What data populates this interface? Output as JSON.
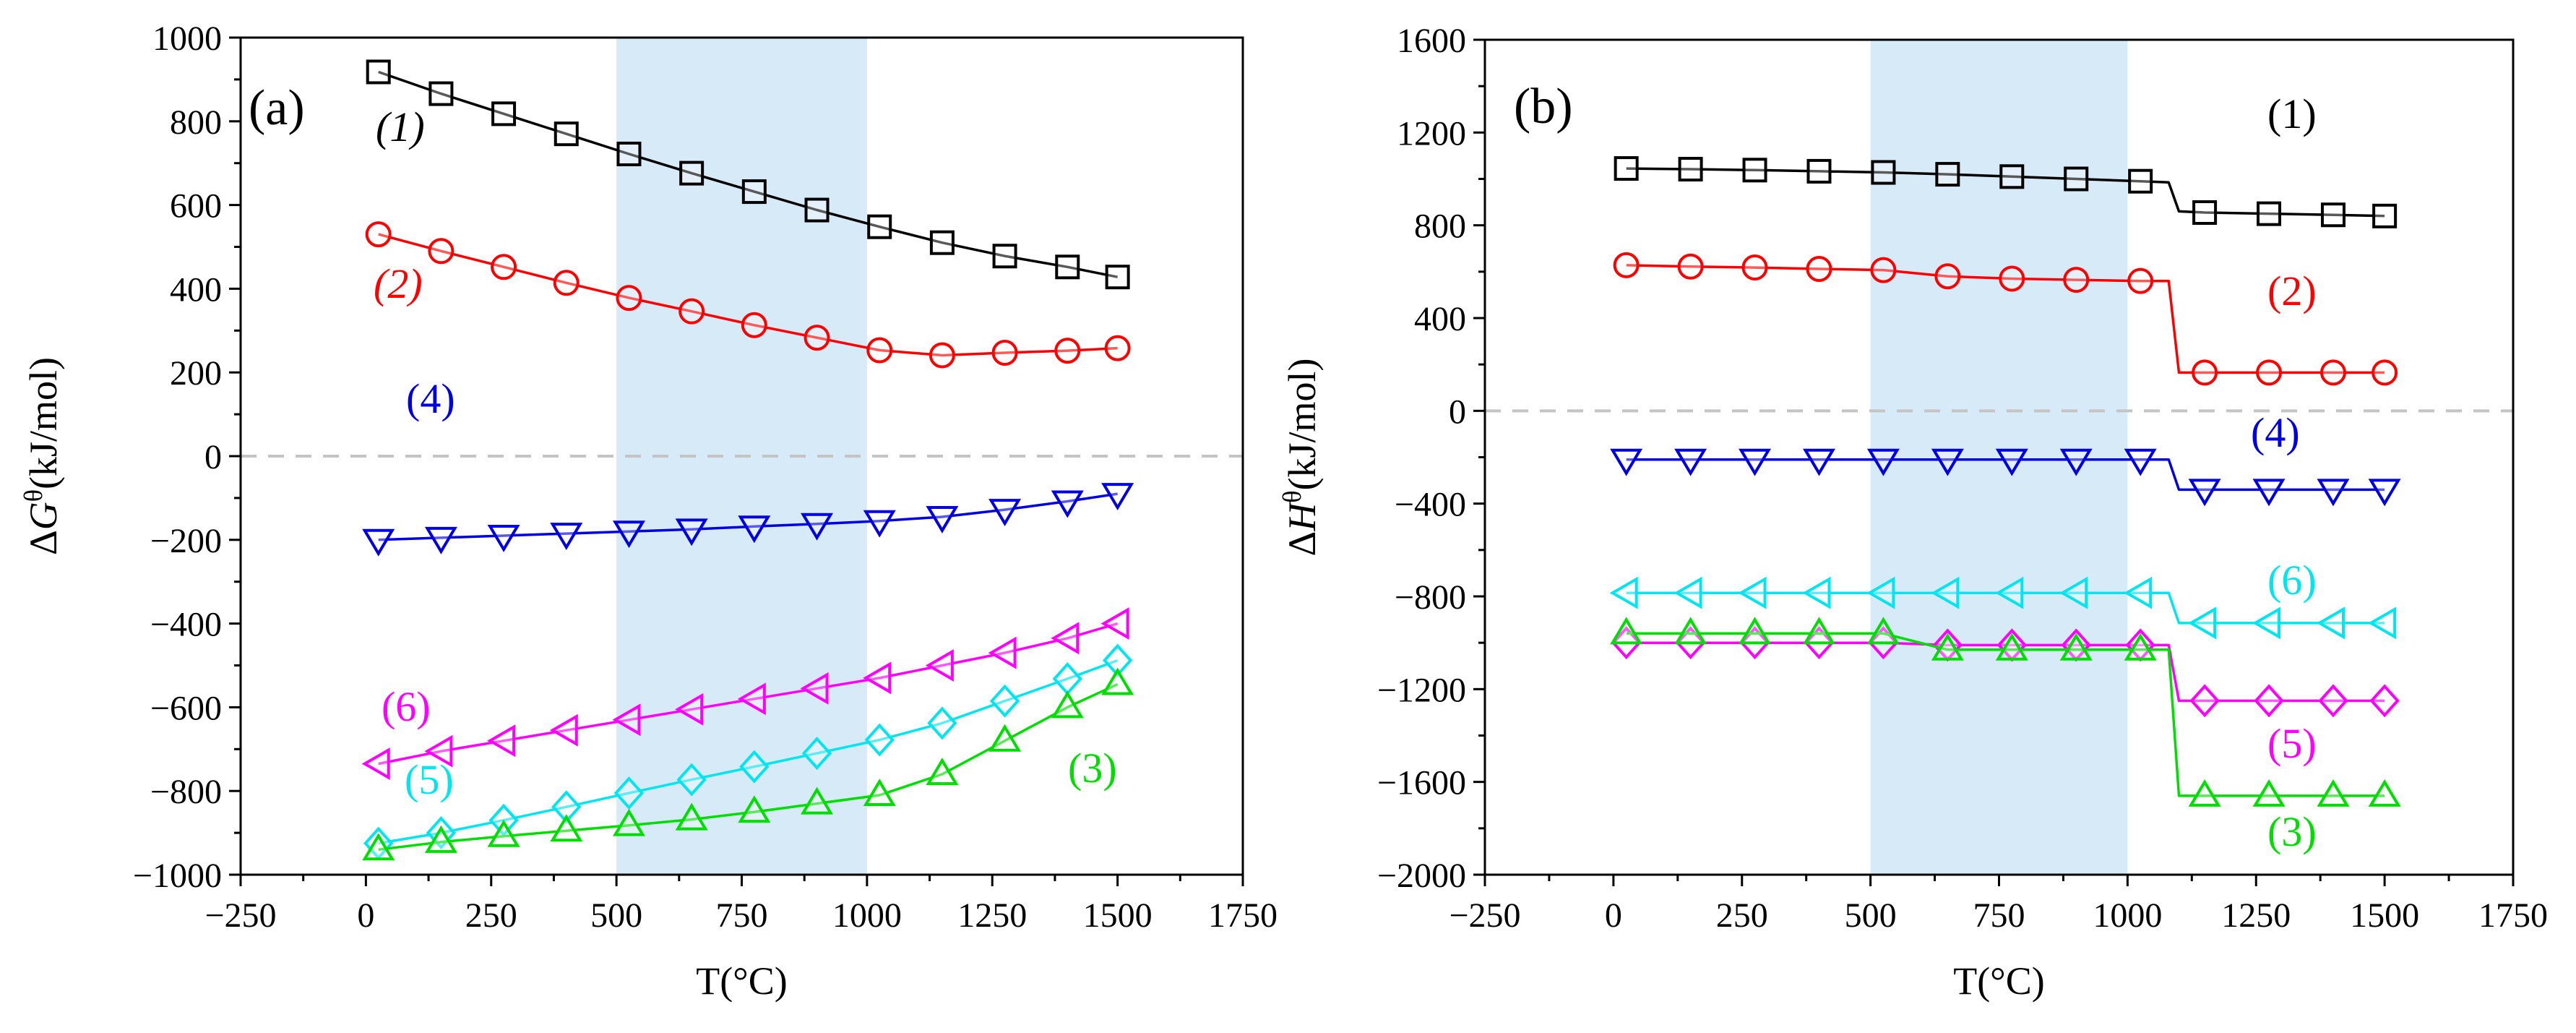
{
  "chart_data": [
    {
      "type": "line",
      "panel_label": "(a)",
      "xlabel": "T(°C)",
      "ylabel_symbol": "ΔG",
      "ylabel_sup": "θ",
      "ylabel_unit": "(kJ/mol)",
      "xlim": [
        -250,
        1750
      ],
      "ylim": [
        -1000,
        1000
      ],
      "xticks": [
        -250,
        0,
        250,
        500,
        750,
        1000,
        1250,
        1500,
        1750
      ],
      "yticks": [
        -1000,
        -800,
        -600,
        -400,
        -200,
        0,
        200,
        400,
        600,
        800,
        1000
      ],
      "highlight_range": [
        500,
        1000
      ],
      "zero_line": 0,
      "x": [
        25,
        150,
        275,
        400,
        525,
        650,
        775,
        900,
        1025,
        1150,
        1275,
        1400,
        1500
      ],
      "series": [
        {
          "name": "(1)",
          "color": "#000000",
          "marker": "square",
          "label_italic": true,
          "values": [
            918,
            866,
            818,
            770,
            722,
            676,
            632,
            588,
            548,
            510,
            478,
            452,
            428
          ]
        },
        {
          "name": "(2)",
          "color": "#ff0000",
          "marker": "circle",
          "label_italic": true,
          "values": [
            530,
            490,
            452,
            414,
            378,
            346,
            313,
            283,
            253,
            241,
            247,
            252,
            258
          ]
        },
        {
          "name": "(4)",
          "color": "#0000e0",
          "marker": "triangle-down",
          "label_italic": false,
          "values": [
            -200,
            -195,
            -190,
            -185,
            -180,
            -175,
            -168,
            -162,
            -155,
            -145,
            -128,
            -108,
            -90
          ]
        },
        {
          "name": "(6)",
          "color": "#ff00ff",
          "marker": "triangle-left",
          "label_italic": false,
          "values": [
            -735,
            -705,
            -680,
            -655,
            -630,
            -605,
            -580,
            -555,
            -530,
            -500,
            -470,
            -435,
            -400
          ]
        },
        {
          "name": "(5)",
          "color": "#00e5ee",
          "marker": "diamond",
          "label_italic": false,
          "values": [
            -925,
            -900,
            -870,
            -838,
            -805,
            -773,
            -742,
            -710,
            -678,
            -638,
            -585,
            -532,
            -488
          ]
        },
        {
          "name": "(3)",
          "color": "#00dd00",
          "marker": "triangle-up",
          "label_italic": false,
          "values": [
            -940,
            -922,
            -908,
            -895,
            -882,
            -868,
            -850,
            -830,
            -810,
            -760,
            -680,
            -600,
            -545
          ]
        }
      ]
    },
    {
      "type": "line",
      "panel_label": "(b)",
      "xlabel": "T(°C)",
      "ylabel_symbol": "ΔH",
      "ylabel_sup": "θ",
      "ylabel_unit": "(kJ/mol)",
      "xlim": [
        -250,
        1750
      ],
      "ylim": [
        -2000,
        1600
      ],
      "xticks": [
        -250,
        0,
        250,
        500,
        750,
        1000,
        1250,
        1500,
        1750
      ],
      "yticks": [
        -2000,
        -1600,
        -1200,
        -800,
        -400,
        0,
        400,
        800,
        1200,
        1600
      ],
      "highlight_range": [
        500,
        1000
      ],
      "zero_line": 0,
      "x": [
        25,
        150,
        275,
        400,
        525,
        650,
        775,
        900,
        1025,
        1150,
        1275,
        1400,
        1500
      ],
      "line_x": [
        25,
        150,
        275,
        400,
        525,
        650,
        775,
        900,
        1025,
        1080,
        1100,
        1150,
        1275,
        1400,
        1500
      ],
      "series": [
        {
          "name": "(1)",
          "color": "#000000",
          "marker": "square",
          "label_italic": false,
          "values": [
            1045,
            1042,
            1038,
            1033,
            1028,
            1020,
            1010,
            1000,
            990,
            855,
            850,
            845,
            840
          ],
          "line_values": [
            1045,
            1042,
            1038,
            1033,
            1028,
            1020,
            1010,
            1000,
            990,
            985,
            860,
            855,
            850,
            845,
            840
          ]
        },
        {
          "name": "(2)",
          "color": "#ff0000",
          "marker": "circle",
          "label_italic": false,
          "values": [
            628,
            622,
            618,
            612,
            607,
            580,
            570,
            565,
            560,
            165,
            165,
            165,
            165
          ],
          "line_values": [
            628,
            622,
            618,
            612,
            607,
            580,
            570,
            565,
            560,
            560,
            165,
            165,
            165,
            165,
            165
          ]
        },
        {
          "name": "(4)",
          "color": "#0000e0",
          "marker": "triangle-down",
          "label_italic": false,
          "values": [
            -210,
            -210,
            -210,
            -210,
            -210,
            -210,
            -210,
            -210,
            -210,
            -340,
            -340,
            -340,
            -340
          ],
          "line_values": [
            -210,
            -210,
            -210,
            -210,
            -210,
            -210,
            -210,
            -210,
            -210,
            -210,
            -340,
            -340,
            -340,
            -340,
            -340
          ]
        },
        {
          "name": "(6)",
          "color": "#00e5ee",
          "marker": "triangle-left",
          "label_italic": false,
          "values": [
            -785,
            -785,
            -785,
            -785,
            -785,
            -785,
            -785,
            -785,
            -785,
            -915,
            -915,
            -915,
            -915
          ],
          "line_values": [
            -785,
            -785,
            -785,
            -785,
            -785,
            -785,
            -785,
            -785,
            -785,
            -785,
            -915,
            -915,
            -915,
            -915,
            -915
          ]
        },
        {
          "name": "(5)",
          "color": "#ff00ff",
          "marker": "diamond",
          "label_italic": false,
          "values": [
            -1000,
            -1000,
            -1000,
            -1000,
            -1000,
            -1010,
            -1010,
            -1010,
            -1010,
            -1250,
            -1250,
            -1250,
            -1250
          ],
          "line_values": [
            -1000,
            -1000,
            -1000,
            -1000,
            -1000,
            -1010,
            -1010,
            -1010,
            -1010,
            -1010,
            -1250,
            -1250,
            -1250,
            -1250,
            -1250
          ]
        },
        {
          "name": "(3)",
          "color": "#00dd00",
          "marker": "triangle-up",
          "label_italic": false,
          "values": [
            -960,
            -960,
            -960,
            -960,
            -960,
            -1030,
            -1030,
            -1030,
            -1030,
            -1660,
            -1660,
            -1660,
            -1660
          ],
          "line_values": [
            -960,
            -960,
            -960,
            -960,
            -960,
            -1030,
            -1030,
            -1030,
            -1030,
            -1030,
            -1660,
            -1660,
            -1660,
            -1660,
            -1660
          ]
        }
      ]
    }
  ]
}
